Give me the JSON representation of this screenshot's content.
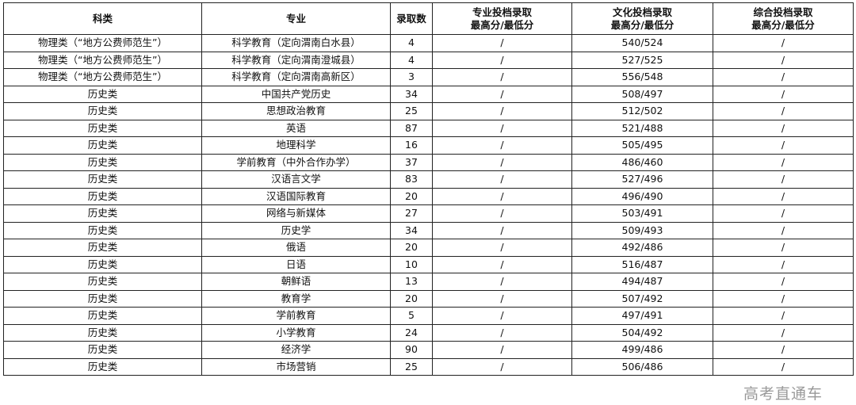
{
  "headers": [
    "科类",
    "专业",
    "录取数",
    "专业投档录取\n最高分/最低分",
    "文化投档录取\n最高分/最低分",
    "综合投档录取\n最高分/最低分"
  ],
  "rows": [
    [
      "物理类（“地方公费师范生”）",
      "科学教育（定向渭南白水县）",
      "4",
      "/",
      "540/524",
      "/"
    ],
    [
      "物理类（“地方公费师范生”）",
      "科学教育（定向渭南澄城县）",
      "4",
      "/",
      "527/525",
      "/"
    ],
    [
      "物理类（“地方公费师范生”）",
      "科学教育（定向渭南高新区）",
      "3",
      "/",
      "556/548",
      "/"
    ],
    [
      "历史类",
      "中国共产党历史",
      "34",
      "/",
      "508/497",
      "/"
    ],
    [
      "历史类",
      "思想政治教育",
      "25",
      "/",
      "512/502",
      "/"
    ],
    [
      "历史类",
      "英语",
      "87",
      "/",
      "521/488",
      "/"
    ],
    [
      "历史类",
      "地理科学",
      "16",
      "/",
      "505/495",
      "/"
    ],
    [
      "历史类",
      "学前教育（中外合作办学）",
      "37",
      "/",
      "486/460",
      "/"
    ],
    [
      "历史类",
      "汉语言文学",
      "83",
      "/",
      "527/496",
      "/"
    ],
    [
      "历史类",
      "汉语国际教育",
      "20",
      "/",
      "496/490",
      "/"
    ],
    [
      "历史类",
      "网络与新媒体",
      "27",
      "/",
      "503/491",
      "/"
    ],
    [
      "历史类",
      "历史学",
      "34",
      "/",
      "509/493",
      "/"
    ],
    [
      "历史类",
      "俄语",
      "20",
      "/",
      "492/486",
      "/"
    ],
    [
      "历史类",
      "日语",
      "10",
      "/",
      "516/487",
      "/"
    ],
    [
      "历史类",
      "朝鲜语",
      "13",
      "/",
      "494/487",
      "/"
    ],
    [
      "历史类",
      "教育学",
      "20",
      "/",
      "507/492",
      "/"
    ],
    [
      "历史类",
      "学前教育",
      "5",
      "/",
      "497/491",
      "/"
    ],
    [
      "历史类",
      "小学教育",
      "24",
      "/",
      "504/492",
      "/"
    ],
    [
      "历史类",
      "经济学",
      "90",
      "/",
      "499/486",
      "/"
    ],
    [
      "历史类",
      "市场营销",
      "25",
      "/",
      "506/486",
      "/"
    ]
  ],
  "watermark": "高考直通车"
}
